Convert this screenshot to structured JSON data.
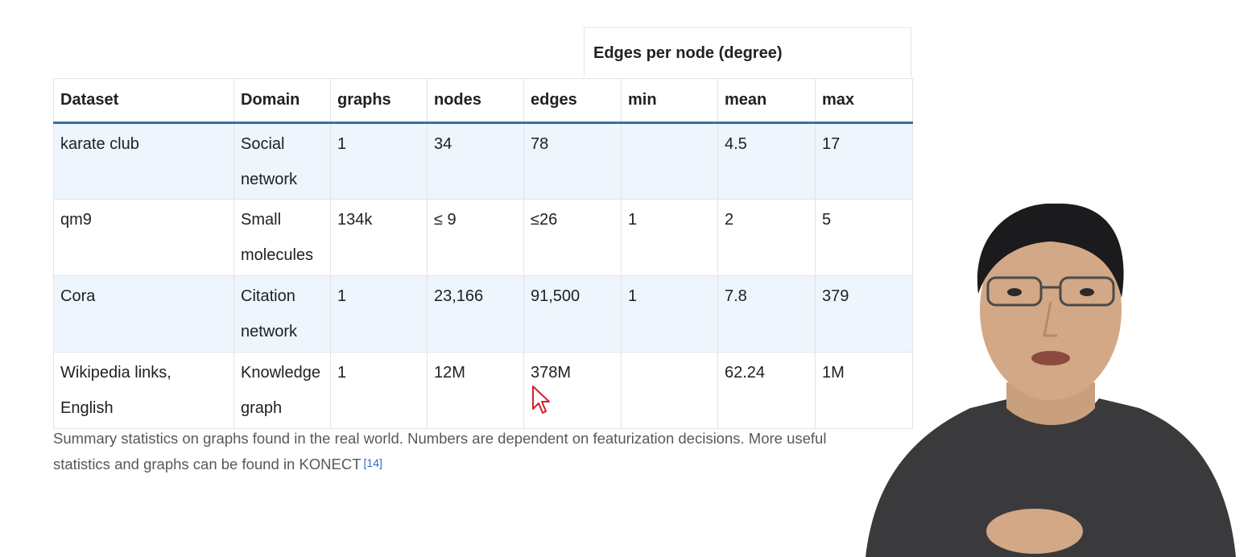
{
  "table": {
    "group_header": "Edges per node (degree)",
    "columns": [
      "Dataset",
      "Domain",
      "graphs",
      "nodes",
      "edges",
      "min",
      "mean",
      "max"
    ],
    "rows": [
      {
        "dataset": "karate club",
        "domain": "Social network",
        "graphs": "1",
        "nodes": "34",
        "edges": "78",
        "min": "",
        "mean": "4.5",
        "max": "17"
      },
      {
        "dataset": "qm9",
        "domain": "Small molecules",
        "graphs": "134k",
        "nodes": "≤ 9",
        "edges": "≤26",
        "min": "1",
        "mean": "2",
        "max": "5"
      },
      {
        "dataset": "Cora",
        "domain": "Citation network",
        "graphs": "1",
        "nodes": "23,166",
        "edges": "91,500",
        "min": "1",
        "mean": "7.8",
        "max": "379"
      },
      {
        "dataset": "Wikipedia links, English",
        "domain": "Knowledge graph",
        "graphs": "1",
        "nodes": "12M",
        "edges": "378M",
        "min": "",
        "mean": "62.24",
        "max": "1M"
      }
    ]
  },
  "caption": {
    "text": "Summary statistics on graphs found in the real world. Numbers are dependent on featurization decisions. More useful statistics and graphs can be found in KONECT",
    "reference": "[14]"
  },
  "colors": {
    "header_rule": "#3a6ea5",
    "row_shade": "#eef5fd",
    "border": "#e3e4e6",
    "cursor": "#d0202a"
  },
  "icons": {
    "cursor": "mouse-pointer-icon"
  }
}
